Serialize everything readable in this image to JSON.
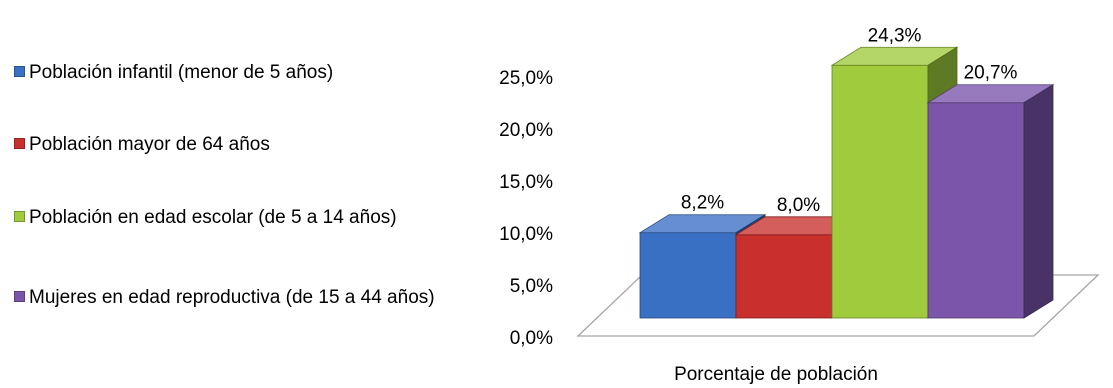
{
  "chart_data": {
    "type": "bar",
    "categories": [
      "Porcentaje de población"
    ],
    "xlabel": "Porcentaje de población",
    "ylabel": "",
    "ylim": [
      0,
      25
    ],
    "yticks": [
      "0,0%",
      "5,0%",
      "10,0%",
      "15,0%",
      "20,0%",
      "25,0%"
    ],
    "legend_position": "left",
    "three_d": true,
    "series": [
      {
        "name": "Población infantil (menor de 5 años)",
        "values": [
          8.2
        ],
        "label": "8,2%",
        "color": "#3a70c4"
      },
      {
        "name": "Población mayor de 64 años",
        "values": [
          8.0
        ],
        "label": "8,0%",
        "color": "#c8302e"
      },
      {
        "name": "Población en edad escolar (de 5 a 14 años)",
        "values": [
          24.3
        ],
        "label": "24,3%",
        "color": "#9fcb3c"
      },
      {
        "name": "Mujeres en edad reproductiva (de 15 a 44 años)",
        "values": [
          20.7
        ],
        "label": "20,7%",
        "color": "#7a55aa"
      }
    ]
  }
}
